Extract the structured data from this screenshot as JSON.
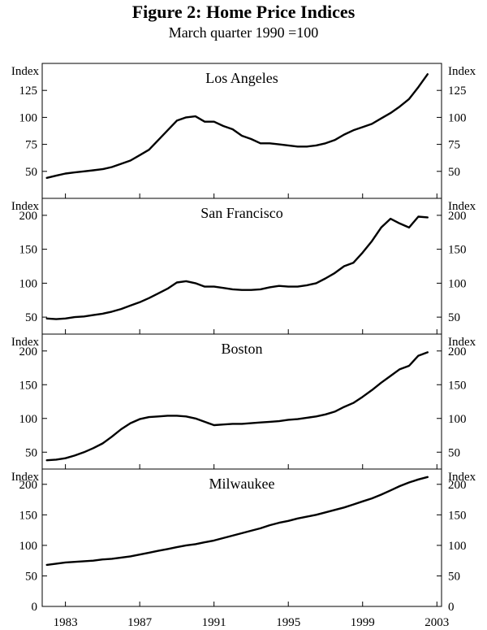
{
  "figure": {
    "title": "Figure 2: Home Price Indices",
    "subtitle": "March quarter 1990 =100"
  },
  "chart_data": {
    "type": "line",
    "x_axis": {
      "range": [
        1981.75,
        2003.25
      ],
      "ticks": [
        1983,
        1987,
        1991,
        1995,
        1999,
        2003
      ],
      "tick_labels": [
        "1983",
        "1987",
        "1991",
        "1995",
        "1999",
        "2003"
      ]
    },
    "line_color": "#000000",
    "panels": [
      {
        "name": "Los Angeles",
        "unit_label": "Index",
        "ylim": [
          25,
          150
        ],
        "yticks": [
          50,
          75,
          100,
          125
        ],
        "series": {
          "x": [
            1982.0,
            1982.5,
            1983.0,
            1983.5,
            1984.0,
            1984.5,
            1985.0,
            1985.5,
            1986.0,
            1986.5,
            1987.0,
            1987.5,
            1988.0,
            1988.5,
            1989.0,
            1989.5,
            1990.0,
            1990.5,
            1991.0,
            1991.5,
            1992.0,
            1992.5,
            1993.0,
            1993.5,
            1994.0,
            1994.5,
            1995.0,
            1995.5,
            1996.0,
            1996.5,
            1997.0,
            1997.5,
            1998.0,
            1998.5,
            1999.0,
            1999.5,
            2000.0,
            2000.5,
            2001.0,
            2001.5,
            2002.0,
            2002.5
          ],
          "y": [
            44,
            46,
            48,
            49,
            50,
            51,
            52,
            54,
            57,
            60,
            65,
            70,
            79,
            88,
            97,
            100,
            101,
            96,
            96,
            92,
            89,
            83,
            80,
            76,
            76,
            75,
            74,
            73,
            73,
            74,
            76,
            79,
            84,
            88,
            91,
            94,
            99,
            104,
            110,
            117,
            128,
            140
          ]
        }
      },
      {
        "name": "San Francisco",
        "unit_label": "Index",
        "ylim": [
          25,
          225
        ],
        "yticks": [
          50,
          100,
          150,
          200
        ],
        "series": {
          "x": [
            1982.0,
            1982.5,
            1983.0,
            1983.5,
            1984.0,
            1984.5,
            1985.0,
            1985.5,
            1986.0,
            1986.5,
            1987.0,
            1987.5,
            1988.0,
            1988.5,
            1989.0,
            1989.5,
            1990.0,
            1990.5,
            1991.0,
            1991.5,
            1992.0,
            1992.5,
            1993.0,
            1993.5,
            1994.0,
            1994.5,
            1995.0,
            1995.5,
            1996.0,
            1996.5,
            1997.0,
            1997.5,
            1998.0,
            1998.5,
            1999.0,
            1999.5,
            2000.0,
            2000.5,
            2001.0,
            2001.5,
            2002.0,
            2002.5
          ],
          "y": [
            48,
            47,
            48,
            50,
            51,
            53,
            55,
            58,
            62,
            67,
            72,
            78,
            85,
            92,
            101,
            103,
            100,
            95,
            95,
            93,
            91,
            90,
            90,
            91,
            94,
            96,
            95,
            95,
            97,
            100,
            107,
            115,
            125,
            130,
            145,
            162,
            182,
            195,
            188,
            182,
            198,
            197
          ]
        }
      },
      {
        "name": "Boston",
        "unit_label": "Index",
        "ylim": [
          25,
          225
        ],
        "yticks": [
          50,
          100,
          150,
          200
        ],
        "series": {
          "x": [
            1982.0,
            1982.5,
            1983.0,
            1983.5,
            1984.0,
            1984.5,
            1985.0,
            1985.5,
            1986.0,
            1986.5,
            1987.0,
            1987.5,
            1988.0,
            1988.5,
            1989.0,
            1989.5,
            1990.0,
            1990.5,
            1991.0,
            1991.5,
            1992.0,
            1992.5,
            1993.0,
            1993.5,
            1994.0,
            1994.5,
            1995.0,
            1995.5,
            1996.0,
            1996.5,
            1997.0,
            1997.5,
            1998.0,
            1998.5,
            1999.0,
            1999.5,
            2000.0,
            2000.5,
            2001.0,
            2001.5,
            2002.0,
            2002.5
          ],
          "y": [
            38,
            39,
            41,
            45,
            50,
            56,
            63,
            73,
            84,
            93,
            99,
            102,
            103,
            104,
            104,
            103,
            100,
            95,
            90,
            91,
            92,
            92,
            93,
            94,
            95,
            96,
            98,
            99,
            101,
            103,
            106,
            110,
            117,
            123,
            132,
            142,
            153,
            163,
            173,
            178,
            193,
            198
          ]
        }
      },
      {
        "name": "Milwaukee",
        "unit_label": "Index",
        "ylim": [
          0,
          225
        ],
        "yticks": [
          0,
          50,
          100,
          150,
          200
        ],
        "series": {
          "x": [
            1982.0,
            1982.5,
            1983.0,
            1983.5,
            1984.0,
            1984.5,
            1985.0,
            1985.5,
            1986.0,
            1986.5,
            1987.0,
            1987.5,
            1988.0,
            1988.5,
            1989.0,
            1989.5,
            1990.0,
            1990.5,
            1991.0,
            1991.5,
            1992.0,
            1992.5,
            1993.0,
            1993.5,
            1994.0,
            1994.5,
            1995.0,
            1995.5,
            1996.0,
            1996.5,
            1997.0,
            1997.5,
            1998.0,
            1998.5,
            1999.0,
            1999.5,
            2000.0,
            2000.5,
            2001.0,
            2001.5,
            2002.0,
            2002.5
          ],
          "y": [
            68,
            70,
            72,
            73,
            74,
            75,
            77,
            78,
            80,
            82,
            85,
            88,
            91,
            94,
            97,
            100,
            102,
            105,
            108,
            112,
            116,
            120,
            124,
            128,
            133,
            137,
            140,
            144,
            147,
            150,
            154,
            158,
            162,
            167,
            172,
            177,
            183,
            190,
            197,
            203,
            208,
            212
          ]
        }
      }
    ]
  }
}
